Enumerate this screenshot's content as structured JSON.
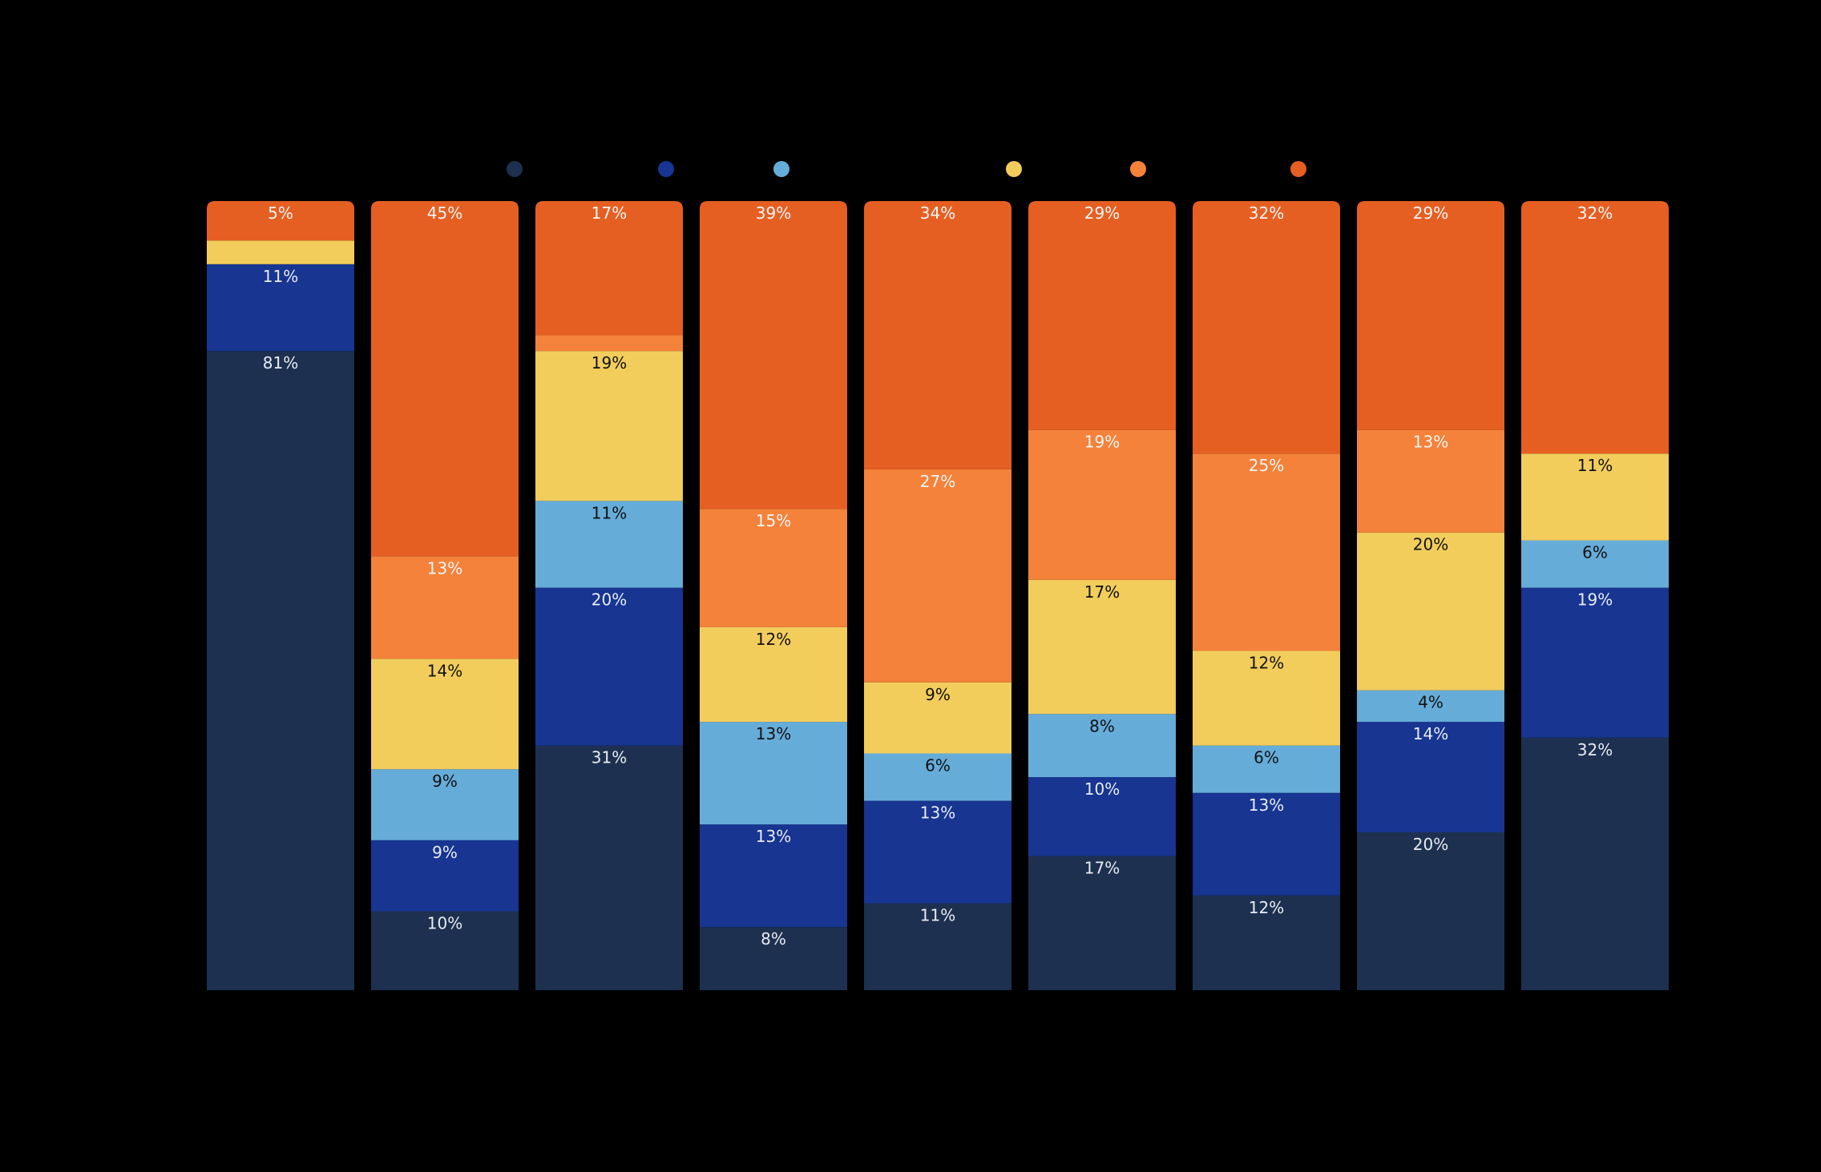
{
  "chart_data": {
    "type": "bar",
    "stacked": true,
    "normalized": true,
    "title": "",
    "xlabel": "",
    "ylabel": "",
    "ylim": [
      0,
      100
    ],
    "grid": false,
    "legend_position": "top",
    "categories": [
      "",
      "",
      "",
      "",
      "",
      "",
      "",
      "",
      ""
    ],
    "series": [
      {
        "name": "",
        "color": "#1d3050",
        "label_color": "#e8ecf2",
        "values": [
          81,
          10,
          31,
          8,
          11,
          17,
          12,
          20,
          32
        ]
      },
      {
        "name": "",
        "color": "#173591",
        "label_color": "#e8ecf2",
        "values": [
          11,
          9,
          20,
          13,
          13,
          10,
          13,
          14,
          19
        ]
      },
      {
        "name": "",
        "color": "#66acd9",
        "label_color": "#111111",
        "values": [
          0,
          9,
          11,
          13,
          6,
          8,
          6,
          4,
          6
        ]
      },
      {
        "name": "",
        "color": "#f2cd5c",
        "label_color": "#111111",
        "values": [
          3,
          14,
          19,
          12,
          9,
          17,
          12,
          20,
          11
        ]
      },
      {
        "name": "",
        "color": "#f4823a",
        "label_color": "#f5f5f5",
        "values": [
          0,
          13,
          2,
          15,
          27,
          19,
          25,
          13,
          0
        ]
      },
      {
        "name": "",
        "color": "#e55f22",
        "label_color": "#f5f5f5",
        "values": [
          5,
          45,
          17,
          39,
          34,
          29,
          32,
          29,
          32
        ]
      }
    ],
    "data_labels": [
      [
        "81%",
        "11%",
        "",
        "",
        "",
        "5%"
      ],
      [
        "10%",
        "9%",
        "9%",
        "14%",
        "13%",
        "45%"
      ],
      [
        "31%",
        "20%",
        "11%",
        "19%",
        "",
        "17%"
      ],
      [
        "8%",
        "13%",
        "13%",
        "12%",
        "15%",
        "39%"
      ],
      [
        "11%",
        "13%",
        "6%",
        "9%",
        "27%",
        "34%"
      ],
      [
        "17%",
        "10%",
        "8%",
        "17%",
        "19%",
        "29%"
      ],
      [
        "12%",
        "13%",
        "6%",
        "12%",
        "25%",
        "32%"
      ],
      [
        "20%",
        "14%",
        "4%",
        "20%",
        "13%",
        "29%"
      ],
      [
        "32%",
        "19%",
        "6%",
        "11%",
        "",
        "32%"
      ]
    ]
  }
}
